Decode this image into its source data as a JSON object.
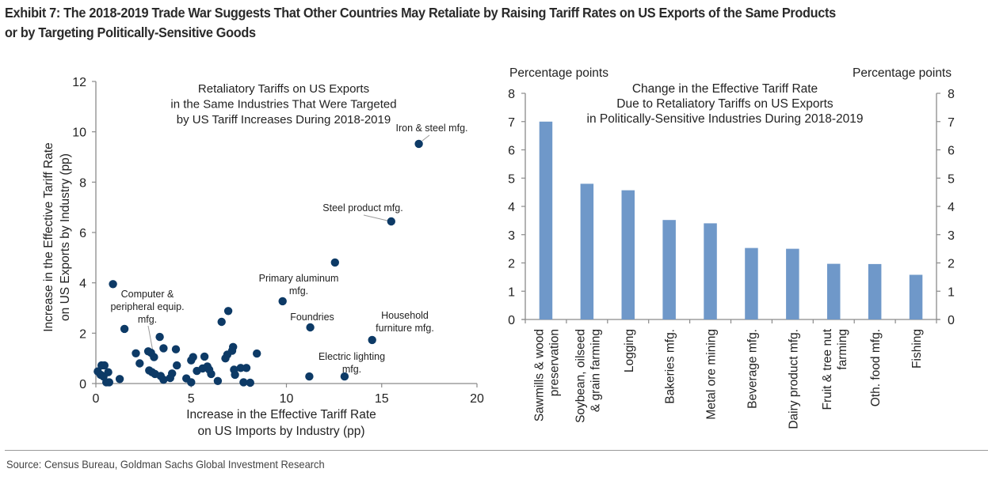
{
  "exhibit": {
    "title_line1": "Exhibit 7: The 2018-2019 Trade War Suggests That Other Countries May Retaliate by Raising Tariff Rates on US Exports of the Same Products",
    "title_line2": "or by Targeting Politically-Sensitive Goods",
    "source": "Source: Census Bureau, Goldman Sachs Global Investment Research"
  },
  "colors": {
    "scatter_point": "#0d3a66",
    "bar_fill": "#6f98c9",
    "axis": "#8a8a8a"
  },
  "chart_data": [
    {
      "type": "scatter",
      "title": [
        "Retaliatory Tariffs on US Exports",
        "in the Same Industries That Were Targeted",
        "by US Tariff Increases During 2018-2019"
      ],
      "xlabel": [
        "Increase in the Effective Tariff Rate",
        "on US Imports by Industry (pp)"
      ],
      "ylabel": [
        "Increase in the Effective Tariff Rate",
        "on US Exports by Industry (pp)"
      ],
      "xlim": [
        0,
        20
      ],
      "ylim": [
        0,
        12
      ],
      "xticks": [
        0,
        5,
        10,
        15,
        20
      ],
      "yticks": [
        0,
        2,
        4,
        6,
        8,
        10,
        12
      ],
      "grid": false,
      "legend": "none",
      "points": [
        {
          "x": 16.95,
          "y": 9.52
        },
        {
          "x": 15.5,
          "y": 6.44
        },
        {
          "x": 12.55,
          "y": 4.81
        },
        {
          "x": 9.8,
          "y": 3.27
        },
        {
          "x": 11.25,
          "y": 2.23
        },
        {
          "x": 14.5,
          "y": 1.73
        },
        {
          "x": 13.05,
          "y": 0.28
        },
        {
          "x": 11.2,
          "y": 0.28
        },
        {
          "x": 8.45,
          "y": 1.19
        },
        {
          "x": 0.9,
          "y": 3.95
        },
        {
          "x": 1.5,
          "y": 2.17
        },
        {
          "x": 6.6,
          "y": 2.45
        },
        {
          "x": 6.95,
          "y": 2.88
        },
        {
          "x": 3.35,
          "y": 1.85
        },
        {
          "x": 2.1,
          "y": 1.2
        },
        {
          "x": 2.75,
          "y": 1.28
        },
        {
          "x": 2.9,
          "y": 1.22
        },
        {
          "x": 3.05,
          "y": 1.05
        },
        {
          "x": 3.55,
          "y": 1.4
        },
        {
          "x": 2.3,
          "y": 0.8
        },
        {
          "x": 2.8,
          "y": 0.52
        },
        {
          "x": 2.95,
          "y": 0.45
        },
        {
          "x": 3.1,
          "y": 0.38
        },
        {
          "x": 3.4,
          "y": 0.3
        },
        {
          "x": 3.55,
          "y": 0.15
        },
        {
          "x": 4.2,
          "y": 1.36
        },
        {
          "x": 4.25,
          "y": 0.72
        },
        {
          "x": 4.0,
          "y": 0.4
        },
        {
          "x": 3.9,
          "y": 0.22
        },
        {
          "x": 4.75,
          "y": 0.2
        },
        {
          "x": 5.0,
          "y": 0.92
        },
        {
          "x": 5.1,
          "y": 1.05
        },
        {
          "x": 5.0,
          "y": 0.05
        },
        {
          "x": 5.3,
          "y": 0.5
        },
        {
          "x": 5.6,
          "y": 0.6
        },
        {
          "x": 5.7,
          "y": 1.07
        },
        {
          "x": 5.85,
          "y": 0.68
        },
        {
          "x": 5.95,
          "y": 0.55
        },
        {
          "x": 6.05,
          "y": 0.38
        },
        {
          "x": 6.4,
          "y": 0.1
        },
        {
          "x": 6.8,
          "y": 1.0
        },
        {
          "x": 6.9,
          "y": 1.15
        },
        {
          "x": 7.15,
          "y": 1.3
        },
        {
          "x": 7.2,
          "y": 1.45
        },
        {
          "x": 7.25,
          "y": 0.55
        },
        {
          "x": 7.3,
          "y": 0.35
        },
        {
          "x": 7.6,
          "y": 0.62
        },
        {
          "x": 7.9,
          "y": 0.62
        },
        {
          "x": 7.75,
          "y": 0.05
        },
        {
          "x": 8.1,
          "y": 0.03
        },
        {
          "x": 0.1,
          "y": 0.48
        },
        {
          "x": 0.25,
          "y": 0.35
        },
        {
          "x": 0.3,
          "y": 0.72
        },
        {
          "x": 0.45,
          "y": 0.72
        },
        {
          "x": 0.4,
          "y": 0.28
        },
        {
          "x": 0.55,
          "y": 0.05
        },
        {
          "x": 0.7,
          "y": 0.05
        },
        {
          "x": 0.65,
          "y": 0.45
        },
        {
          "x": 1.25,
          "y": 0.18
        }
      ],
      "annotations": [
        {
          "text": [
            "Iron & steel mfg."
          ],
          "x": 16.95,
          "y": 9.52
        },
        {
          "text": [
            "Steel product mfg."
          ],
          "x": 15.5,
          "y": 6.44
        },
        {
          "text": [
            "Primary aluminum",
            "mfg."
          ],
          "x": 9.8,
          "y": 3.27
        },
        {
          "text": [
            "Foundries"
          ],
          "x": 11.25,
          "y": 2.23
        },
        {
          "text": [
            "Household",
            "furniture mfg."
          ],
          "x": 14.5,
          "y": 1.73
        },
        {
          "text": [
            "Electric lighting",
            "mfg."
          ],
          "x": 13.05,
          "y": 0.28
        },
        {
          "text": [
            "Computer &",
            "peripheral equip.",
            "mfg."
          ],
          "x": 3.05,
          "y": 1.05
        }
      ]
    },
    {
      "type": "bar",
      "title": [
        "Change in the Effective Tariff Rate",
        "Due to Retaliatory Tariffs on US Exports",
        "in Politically-Sensitive Industries During 2018-2019"
      ],
      "ylabel_left": "Percentage points",
      "ylabel_right": "Percentage points",
      "ylim": [
        0,
        8
      ],
      "yticks": [
        0,
        1,
        2,
        3,
        4,
        5,
        6,
        7,
        8
      ],
      "grid": false,
      "legend": "none",
      "categories": [
        [
          "Sawmills & wood",
          "preservation"
        ],
        [
          "Soybean, oilseed",
          "& grain farming"
        ],
        [
          "Logging"
        ],
        [
          "Bakeries mfg."
        ],
        [
          "Metal ore mining"
        ],
        [
          "Beverage mfg."
        ],
        [
          "Dairy product mfg."
        ],
        [
          "Fruit & tree nut",
          "farming"
        ],
        [
          "Oth. food mfg."
        ],
        [
          "Fishing"
        ]
      ],
      "values": [
        7.0,
        4.8,
        4.57,
        3.52,
        3.4,
        2.53,
        2.5,
        1.97,
        1.96,
        1.58
      ]
    }
  ]
}
